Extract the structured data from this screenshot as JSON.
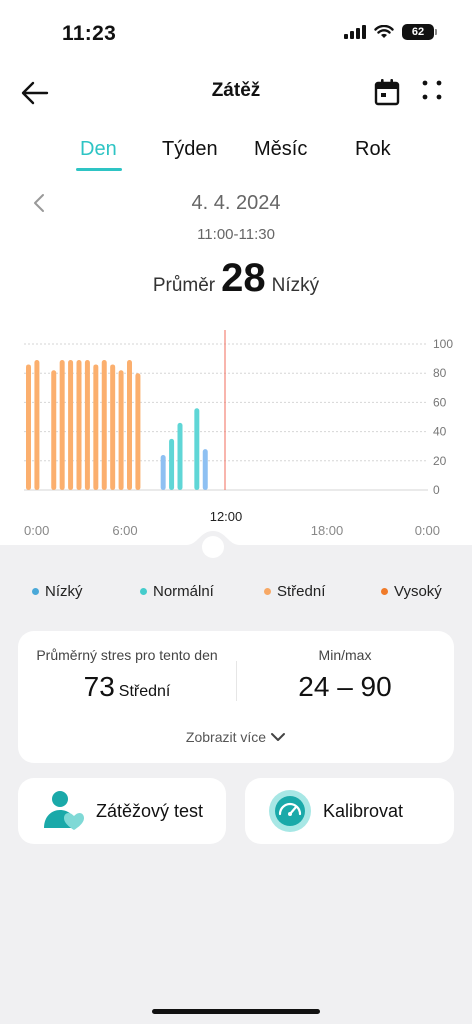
{
  "status": {
    "time": "11:23",
    "battery": "62"
  },
  "header": {
    "title": "Zátěž"
  },
  "tabs": [
    {
      "label": "Den",
      "active": true
    },
    {
      "label": "Týden",
      "active": false
    },
    {
      "label": "Měsíc",
      "active": false
    },
    {
      "label": "Rok",
      "active": false
    }
  ],
  "date": {
    "label": "4. 4. 2024",
    "time_range": "11:00-11:30"
  },
  "summary": {
    "prefix": "Průměr",
    "value": "28",
    "suffix": "Nízký"
  },
  "chart_data": {
    "type": "bar",
    "y_ticks": [
      "100",
      "80",
      "60",
      "40",
      "20",
      "0"
    ],
    "ylim": [
      0,
      100
    ],
    "x_ticks": [
      "0:00",
      "6:00",
      "12:00",
      "18:00",
      "0:00"
    ],
    "xlim_hours": [
      0,
      24
    ],
    "selected_label": "12:00",
    "selected_hour": 12,
    "series": [
      {
        "name": "Střední",
        "color": "#fbaf6e",
        "points": [
          {
            "hour": 0.0,
            "value": 86
          },
          {
            "hour": 0.5,
            "value": 89
          },
          {
            "hour": 1.5,
            "value": 82
          },
          {
            "hour": 2.0,
            "value": 89
          },
          {
            "hour": 2.5,
            "value": 89
          },
          {
            "hour": 3.0,
            "value": 89
          },
          {
            "hour": 3.5,
            "value": 89
          },
          {
            "hour": 4.0,
            "value": 86
          },
          {
            "hour": 4.5,
            "value": 89
          },
          {
            "hour": 5.0,
            "value": 86
          },
          {
            "hour": 5.5,
            "value": 82
          },
          {
            "hour": 6.0,
            "value": 89
          },
          {
            "hour": 6.5,
            "value": 80
          }
        ]
      },
      {
        "name": "Normální",
        "color": "#5fd6d6",
        "points": [
          {
            "hour": 8.5,
            "value": 35
          },
          {
            "hour": 9.0,
            "value": 46
          },
          {
            "hour": 10.0,
            "value": 56
          }
        ]
      },
      {
        "name": "Nízký",
        "color": "#8ec0f2",
        "points": [
          {
            "hour": 8.0,
            "value": 24
          },
          {
            "hour": 10.5,
            "value": 28
          }
        ]
      }
    ]
  },
  "legend": [
    {
      "label": "Nízký",
      "color": "#4aa8d8"
    },
    {
      "label": "Normální",
      "color": "#45cccc"
    },
    {
      "label": "Střední",
      "color": "#f7a865"
    },
    {
      "label": "Vysoký",
      "color": "#f07b2a"
    }
  ],
  "stats": {
    "avg_title": "Průměrný stres pro tento den",
    "avg_value": "73",
    "avg_level": "Střední",
    "minmax_title": "Min/max",
    "minmax_value": "24 – 90",
    "show_more": "Zobrazit více"
  },
  "actions": {
    "stress_test": "Zátěžový test",
    "calibrate": "Kalibrovat"
  }
}
